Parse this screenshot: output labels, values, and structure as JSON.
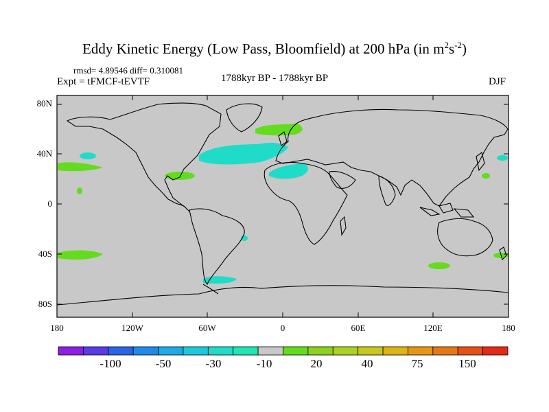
{
  "title": {
    "main": "Eddy Kinetic Energy (Low Pass, Bloomfield) at 200 hPa (in m",
    "sup1": "2",
    "mid": "s",
    "sup2": "-2",
    "end": ")"
  },
  "stats": "rmsd= 4.89546 diff= 0.310081",
  "expt": "Expt = tFMCF-tEVTF",
  "period": "1788kyr BP - 1788kyr BP",
  "season": "DJF",
  "lat_labels": [
    "80N",
    "40N",
    "0",
    "40S",
    "80S"
  ],
  "lon_labels": [
    "180",
    "120W",
    "60W",
    "0",
    "60E",
    "120E",
    "180"
  ],
  "colorbar": {
    "labels": [
      "-100",
      "-50",
      "-30",
      "-10",
      "20",
      "40",
      "75",
      "150"
    ],
    "colors": [
      "#8c1ee6",
      "#5a3ce6",
      "#2866e6",
      "#1e8ce6",
      "#1eaae6",
      "#1ec8dc",
      "#1edcc8",
      "#1ee6b4",
      "#c8c8c8",
      "#64dc1e",
      "#8cd21e",
      "#aad21e",
      "#c8c81e",
      "#dcb414",
      "#e69614",
      "#e67814",
      "#e65014",
      "#e62814"
    ]
  },
  "anomalies": [
    {
      "name": "north-atlantic",
      "color": "#1edcc8"
    },
    {
      "name": "north-africa",
      "color": "#1edcc8"
    },
    {
      "name": "scandinavia",
      "color": "#64dc1e"
    },
    {
      "name": "central-pacific",
      "color": "#64dc1e"
    },
    {
      "name": "south-pacific",
      "color": "#64dc1e"
    },
    {
      "name": "drake-passage",
      "color": "#1edcc8"
    }
  ]
}
